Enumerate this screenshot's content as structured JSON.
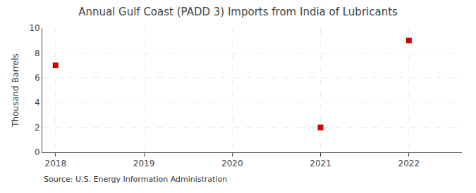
{
  "chart_data": {
    "type": "scatter",
    "title": "Annual Gulf Coast (PADD 3) Imports from India of Lubricants",
    "y_label": "Thousand Barrels",
    "annotations": [
      "Source: U.S. Energy Information Administration"
    ],
    "x": [
      2018,
      2021,
      2022
    ],
    "values": [
      7,
      2,
      9
    ],
    "color": "#cc0000",
    "marker": "square",
    "xlim": [
      2017.85,
      2022.6
    ],
    "ylim": [
      0,
      10
    ],
    "xticks": [
      2018,
      2019,
      2020,
      2021,
      2022
    ],
    "yticks": [
      0,
      2,
      4,
      6,
      8,
      10
    ],
    "grid": true
  }
}
